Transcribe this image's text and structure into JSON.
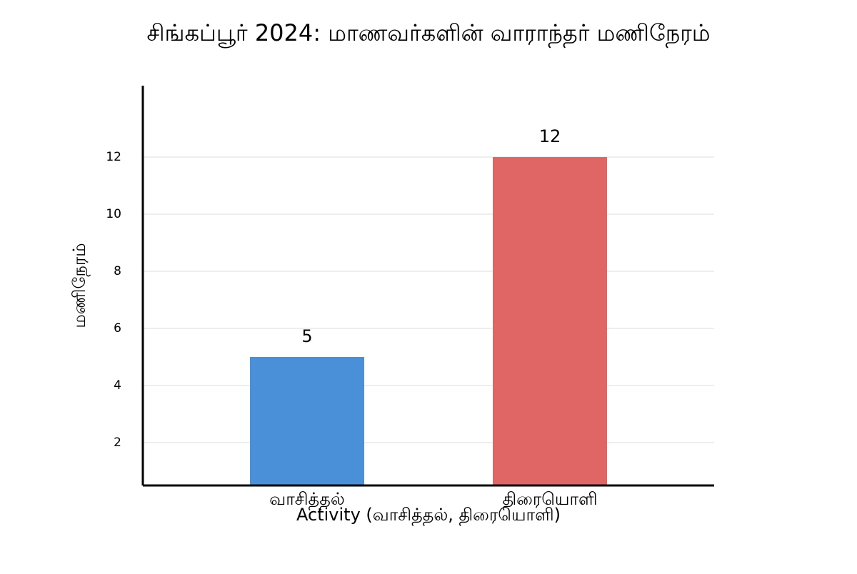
{
  "chart_data": {
    "type": "bar",
    "title": "சிங்கப்பூர் 2024: மாணவர்களின் வாராந்தர் மணிநேரம்",
    "x_label": "Activity (வாசித்தல், திரையொளி)",
    "y_label": "மணிநேரம்",
    "categories": [
      "வாசித்தல்",
      "திரையொளி"
    ],
    "values": [
      5,
      12
    ],
    "colors": [
      "#4a90d9",
      "#e06666"
    ],
    "ylim": [
      0.5,
      14.5
    ],
    "yticks": [
      2,
      4,
      6,
      8,
      10,
      12
    ],
    "grid": true
  }
}
